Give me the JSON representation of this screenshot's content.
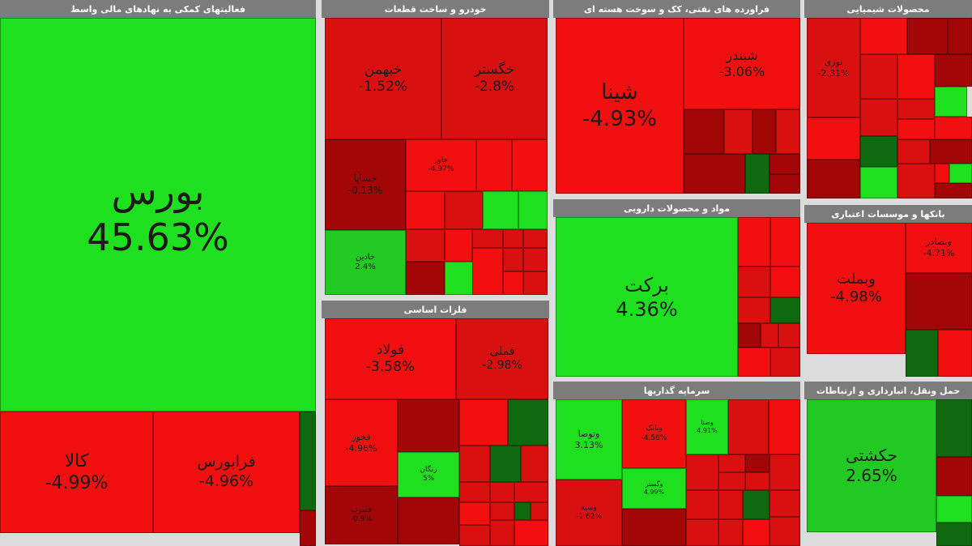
{
  "chart_data": {
    "type": "treemap",
    "colors": {
      "strong_green": "#1fe01f",
      "green": "#22c922",
      "dark_green": "#0f6a0f",
      "strong_red": "#f20f0f",
      "red": "#d81010",
      "dark_red": "#a30606",
      "deep_red": "#7d0202",
      "header": "#7c7c7c"
    },
    "sectors": [
      {
        "name": "فعالیتهای کمکی به نهادهای مالی واسط",
        "tiles": [
          {
            "name": "بورس",
            "change": "45.63%"
          },
          {
            "name": "کالا",
            "change": "-4.99%"
          },
          {
            "name": "فرابورس",
            "change": "-4.96%"
          }
        ]
      },
      {
        "name": "خودرو و ساخت قطعات",
        "tiles": [
          {
            "name": "خبهمن",
            "change": "-1.52%"
          },
          {
            "name": "خگستر",
            "change": "-2.8%"
          },
          {
            "name": "خساپا",
            "change": "-0.13%"
          },
          {
            "name": "خاور",
            "change": "-4.97%"
          },
          {
            "name": "خادین",
            "change": "2.4%"
          }
        ]
      },
      {
        "name": "فراورده های نفتی، کک و سوخت هسته ای",
        "tiles": [
          {
            "name": "شینا",
            "change": "-4.93%"
          },
          {
            "name": "شبندر",
            "change": "-3.06%"
          }
        ]
      },
      {
        "name": "محصولات شیمیایی",
        "tiles": [
          {
            "name": "نوری",
            "change": "-2.31%"
          }
        ]
      },
      {
        "name": "مواد و محصولات دارویی",
        "tiles": [
          {
            "name": "برکت",
            "change": "4.36%"
          }
        ]
      },
      {
        "name": "بانکها و موسسات اعتباری",
        "tiles": [
          {
            "name": "وبملت",
            "change": "-4.98%"
          },
          {
            "name": "وبصادر",
            "change": "-4.71%"
          }
        ]
      },
      {
        "name": "فلزات اساسی",
        "tiles": [
          {
            "name": "فولاد",
            "change": "-3.58%"
          },
          {
            "name": "فملی",
            "change": "-2.98%"
          },
          {
            "name": "فخوز",
            "change": "-4.96%"
          },
          {
            "name": "رنگان",
            "change": "5%"
          },
          {
            "name": "فسرب",
            "change": "-0.9%"
          }
        ]
      },
      {
        "name": "سرمایه گذاریها",
        "tiles": [
          {
            "name": "وتوصا",
            "change": "3.13%"
          },
          {
            "name": "وصنا",
            "change": "4.91%"
          },
          {
            "name": "وبانک",
            "change": "-4.56%"
          },
          {
            "name": "وگستر",
            "change": "4.99%"
          },
          {
            "name": "وسپه",
            "change": "-1.62%"
          }
        ]
      },
      {
        "name": "حمل ونقل، انبارداری و ارتباطات",
        "tiles": [
          {
            "name": "حکشتی",
            "change": "2.65%"
          }
        ]
      }
    ]
  }
}
